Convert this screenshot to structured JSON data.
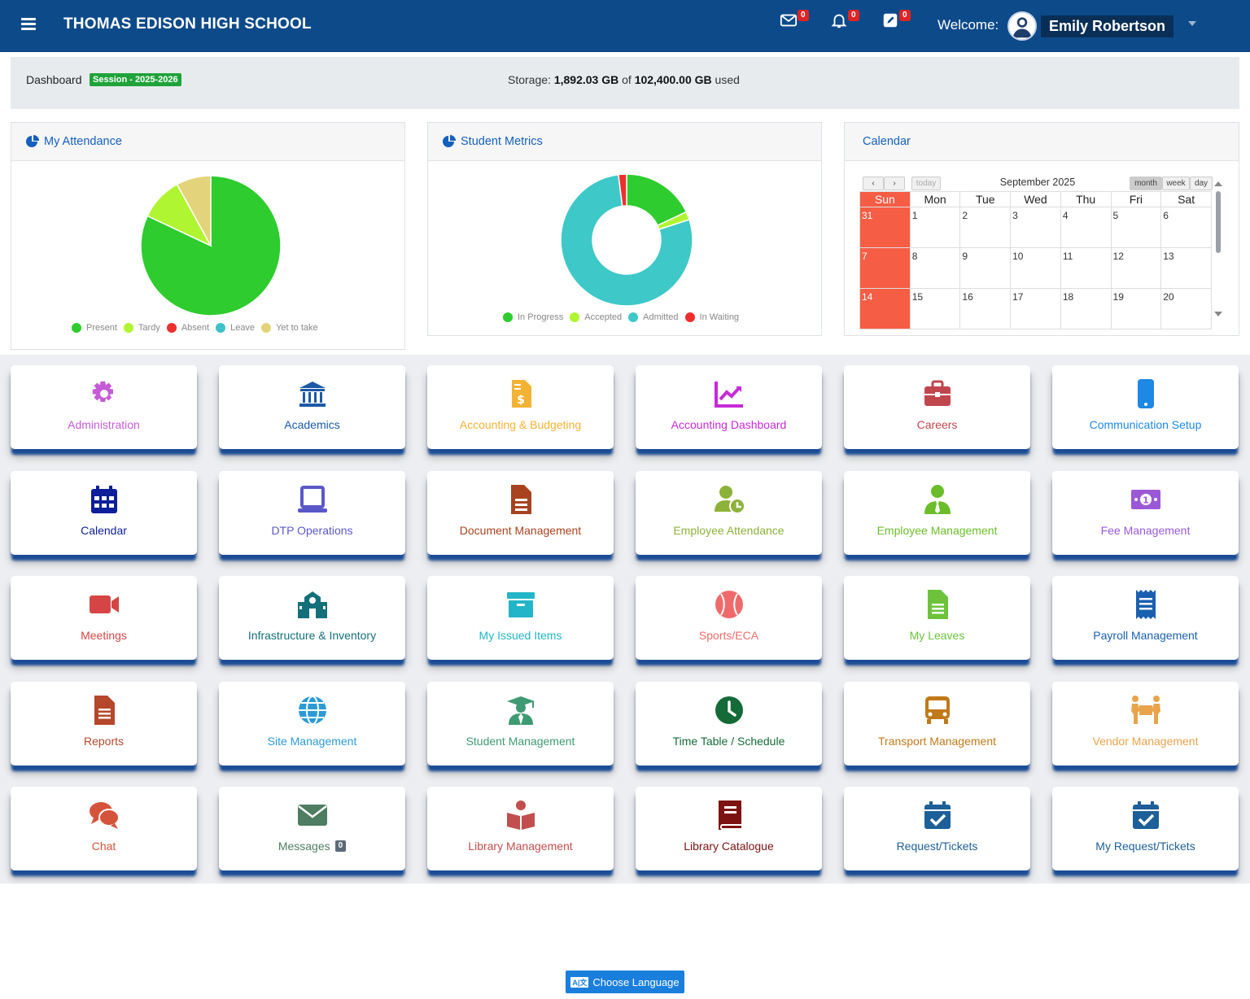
{
  "header": {
    "school_name": "THOMAS EDISON HIGH SCHOOL",
    "messages_count": "0",
    "notifications_count": "0",
    "tasks_count": "0",
    "welcome_label": "Welcome:",
    "user_name": "Emily Robertson"
  },
  "infobar": {
    "dashboard_label": "Dashboard",
    "session_badge": "Session - 2025-2026",
    "storage_label": "Storage:",
    "storage_used": "1,892.03 GB",
    "storage_of": "of",
    "storage_total": "102,400.00 GB",
    "storage_suffix": "used"
  },
  "attendance": {
    "title": "My Attendance",
    "chart_data": {
      "type": "pie",
      "categories": [
        "Present",
        "Tardy",
        "Absent",
        "Leave",
        "Yet to take"
      ],
      "values": [
        82,
        10,
        0,
        0,
        8
      ],
      "colors": [
        "#2ecc2e",
        "#b0f531",
        "#ef2e2e",
        "#3ec1c9",
        "#e3d37a"
      ],
      "legend": "bottom"
    }
  },
  "metrics": {
    "title": "Student Metrics",
    "chart_data": {
      "type": "pie",
      "categories": [
        "In Progress",
        "Accepted",
        "Admitted",
        "In Waiting"
      ],
      "values": [
        18,
        2,
        78,
        2
      ],
      "colors": [
        "#2ecc2e",
        "#b0f531",
        "#3ec8c8",
        "#ef2e2e"
      ],
      "legend": "bottom"
    }
  },
  "calendar": {
    "title": "Calendar",
    "month_title": "September 2025",
    "today_label": "today",
    "month_label": "month",
    "week_label": "week",
    "day_label": "day",
    "weekdays": [
      "Sun",
      "Mon",
      "Tue",
      "Wed",
      "Thu",
      "Fri",
      "Sat"
    ],
    "weeks": [
      [
        "31",
        "1",
        "2",
        "3",
        "4",
        "5",
        "6"
      ],
      [
        "7",
        "8",
        "9",
        "10",
        "11",
        "12",
        "13"
      ],
      [
        "14",
        "15",
        "16",
        "17",
        "18",
        "19",
        "20"
      ]
    ]
  },
  "tiles": [
    {
      "label": "Administration",
      "icon": "gear-icon",
      "color": "#c55bd6"
    },
    {
      "label": "Academics",
      "icon": "bank-icon",
      "color": "#1c5aa6"
    },
    {
      "label": "Accounting & Budgeting",
      "icon": "invoice-dollar-icon",
      "color": "#f2b233"
    },
    {
      "label": "Accounting Dashboard",
      "icon": "chart-line-icon",
      "color": "#c72ad7"
    },
    {
      "label": "Careers",
      "icon": "briefcase-icon",
      "color": "#c0464e"
    },
    {
      "label": "Communication Setup",
      "icon": "mobile-icon",
      "color": "#1e88e5"
    },
    {
      "label": "Calendar",
      "icon": "calendar-icon",
      "color": "#0d1f99"
    },
    {
      "label": "DTP Operations",
      "icon": "laptop-icon",
      "color": "#5b58c9"
    },
    {
      "label": "Document Management",
      "icon": "document-icon",
      "color": "#a8431f"
    },
    {
      "label": "Employee Attendance",
      "icon": "user-clock-icon",
      "color": "#8db23a"
    },
    {
      "label": "Employee Management",
      "icon": "user-tie-icon",
      "color": "#6bbd2a"
    },
    {
      "label": "Fee Management",
      "icon": "money-bill-icon",
      "color": "#9b59d6"
    },
    {
      "label": "Meetings",
      "icon": "video-icon",
      "color": "#d64545"
    },
    {
      "label": "Infrastructure & Inventory",
      "icon": "school-icon",
      "color": "#13707a"
    },
    {
      "label": "My Issued Items",
      "icon": "archive-icon",
      "color": "#22b5c7"
    },
    {
      "label": "Sports/ECA",
      "icon": "baseball-icon",
      "color": "#ef6b6b"
    },
    {
      "label": "My Leaves",
      "icon": "file-lines-icon",
      "color": "#6cc33b"
    },
    {
      "label": "Payroll Management",
      "icon": "receipt-icon",
      "color": "#1a5fb0"
    },
    {
      "label": "Reports",
      "icon": "report-icon",
      "color": "#b5472a"
    },
    {
      "label": "Site Management",
      "icon": "globe-icon",
      "color": "#2b9ad6"
    },
    {
      "label": "Student Management",
      "icon": "graduate-icon",
      "color": "#3e9a72"
    },
    {
      "label": "Time Table / Schedule",
      "icon": "clock-icon",
      "color": "#146b38"
    },
    {
      "label": "Transport Management",
      "icon": "bus-icon",
      "color": "#c07a1a"
    },
    {
      "label": "Vendor Management",
      "icon": "people-carry-icon",
      "color": "#e8a44b"
    },
    {
      "label": "Chat",
      "icon": "comments-icon",
      "color": "#d6533b"
    },
    {
      "label": "Messages",
      "icon": "envelope-icon",
      "color": "#4e7d62",
      "badge": "0"
    },
    {
      "label": "Library Management",
      "icon": "book-open-reader-icon",
      "color": "#c24e4e"
    },
    {
      "label": "Library Catalogue",
      "icon": "book-icon",
      "color": "#7d1212"
    },
    {
      "label": "Request/Tickets",
      "icon": "calendar-check-icon",
      "color": "#1d5f98"
    },
    {
      "label": "My Request/Tickets",
      "icon": "calendar-check-icon",
      "color": "#1d5f98"
    }
  ],
  "footer": {
    "language_button": "Choose Language"
  }
}
